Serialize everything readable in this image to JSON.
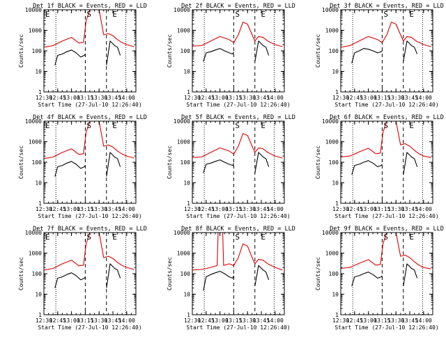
{
  "figure": {
    "x_title": "Start Time (27-Jul-10 12:26:40)",
    "y_title": "Counts/sec",
    "x_ticks": [
      "12:30",
      "12:45",
      "13:00",
      "13:15",
      "13:30",
      "13:45",
      "14:00"
    ],
    "y_ticks": [
      "1",
      "10",
      "100",
      "1000",
      "10000"
    ],
    "marker_labels": [
      "E",
      "S",
      "E"
    ],
    "colors": {
      "events": "#000000",
      "lld": "#e00000",
      "axis": "#000000"
    }
  },
  "chart_data": [
    {
      "type": "line",
      "title": "Det 1f BLACK = Events, RED = LLD",
      "xlabel": "Start Time (27-Jul-10 12:26:40)",
      "ylabel": "Counts/sec",
      "y_scale": "log",
      "ylim": [
        1,
        10000
      ],
      "x_range": [
        "12:30",
        "14:10"
      ],
      "grid": false,
      "dotted_lines": [
        "12:43",
        "13:59"
      ],
      "dashed_lines": [
        "13:15",
        "13:38"
      ],
      "markers": [
        {
          "label": "E",
          "x": "12:30"
        },
        {
          "label": "S",
          "x": "13:15"
        },
        {
          "label": "E",
          "x": "13:43"
        }
      ],
      "series": [
        {
          "name": "LLD",
          "color": "red",
          "x": [
            "12:30",
            "12:40",
            "12:50",
            "13:00",
            "13:08",
            "13:13",
            "13:16",
            "13:20",
            "13:25",
            "13:30",
            "13:35",
            "13:40",
            "13:45",
            "13:50",
            "13:55",
            "14:00",
            "14:08"
          ],
          "values": [
            150,
            180,
            300,
            450,
            240,
            260,
            3000,
            10000,
            10000,
            10000,
            600,
            700,
            550,
            350,
            250,
            200,
            160
          ]
        },
        {
          "name": "Events",
          "color": "black",
          "x": [
            "12:42",
            "12:45",
            "12:50",
            "12:55",
            "13:00",
            "13:05",
            "13:10",
            "13:14",
            "13:15",
            "13:37",
            "13:38",
            "13:42",
            "13:47",
            "13:50",
            "13:53"
          ],
          "values": [
            20,
            60,
            70,
            90,
            110,
            80,
            50,
            60,
            70,
            null,
            20,
            300,
            180,
            150,
            60
          ]
        }
      ]
    },
    {
      "type": "line",
      "title": "Det 2f BLACK = Events, RED = LLD",
      "xlabel": "Start Time (27-Jul-10 12:26:40)",
      "ylabel": "Counts/sec",
      "y_scale": "log",
      "ylim": [
        1,
        10000
      ],
      "x_range": [
        "12:30",
        "14:10"
      ],
      "grid": false,
      "dotted_lines": [
        "12:43",
        "13:59"
      ],
      "dashed_lines": [
        "13:15",
        "13:38"
      ],
      "markers": [
        {
          "label": "S",
          "x": "13:15"
        },
        {
          "label": "E",
          "x": "13:43"
        }
      ],
      "series": [
        {
          "name": "LLD",
          "color": "red",
          "x": [
            "12:30",
            "12:40",
            "12:50",
            "13:00",
            "13:10",
            "13:15",
            "13:20",
            "13:25",
            "13:30",
            "13:35",
            "13:38",
            "13:42",
            "13:47",
            "13:52",
            "14:00",
            "14:08"
          ],
          "values": [
            170,
            180,
            300,
            500,
            350,
            250,
            600,
            2500,
            2000,
            600,
            300,
            500,
            450,
            300,
            200,
            160
          ]
        },
        {
          "name": "Events",
          "color": "black",
          "x": [
            "12:42",
            "12:45",
            "12:50",
            "12:55",
            "13:00",
            "13:05",
            "13:10",
            "13:14",
            "13:15",
            "13:37",
            "13:38",
            "13:42",
            "13:47",
            "13:50",
            "13:53"
          ],
          "values": [
            30,
            80,
            90,
            110,
            130,
            100,
            80,
            70,
            90,
            null,
            30,
            300,
            180,
            150,
            60
          ]
        }
      ]
    },
    {
      "type": "line",
      "title": "Det 3f BLACK = Events, RED = LLD",
      "xlabel": "Start Time (27-Jul-10 12:26:40)",
      "ylabel": "Counts/sec",
      "y_scale": "log",
      "ylim": [
        1,
        10000
      ],
      "x_range": [
        "12:30",
        "14:10"
      ],
      "grid": false,
      "dotted_lines": [
        "12:43",
        "13:59"
      ],
      "dashed_lines": [
        "13:15",
        "13:38"
      ],
      "markers": [
        {
          "label": "S",
          "x": "13:15"
        },
        {
          "label": "E",
          "x": "13:43"
        }
      ],
      "series": [
        {
          "name": "LLD",
          "color": "red",
          "x": [
            "12:30",
            "12:40",
            "12:50",
            "13:00",
            "13:10",
            "13:15",
            "13:20",
            "13:25",
            "13:30",
            "13:35",
            "13:38",
            "13:42",
            "13:47",
            "13:52",
            "14:00",
            "14:08"
          ],
          "values": [
            150,
            180,
            300,
            500,
            350,
            250,
            600,
            2500,
            2000,
            600,
            300,
            500,
            450,
            300,
            200,
            160
          ]
        },
        {
          "name": "Events",
          "color": "black",
          "x": [
            "12:42",
            "12:45",
            "12:50",
            "12:55",
            "13:00",
            "13:05",
            "13:10",
            "13:14",
            "13:15",
            "13:37",
            "13:38",
            "13:42",
            "13:47",
            "13:50",
            "13:53"
          ],
          "values": [
            25,
            80,
            100,
            130,
            120,
            100,
            80,
            90,
            100,
            null,
            30,
            300,
            180,
            150,
            70
          ]
        }
      ]
    },
    {
      "type": "line",
      "title": "Det 4f BLACK = Events, RED = LLD",
      "xlabel": "Start Time (27-Jul-10 12:26:40)",
      "ylabel": "Counts/sec",
      "y_scale": "log",
      "ylim": [
        1,
        10000
      ],
      "x_range": [
        "12:30",
        "14:10"
      ],
      "grid": false,
      "dotted_lines": [
        "12:43",
        "13:59"
      ],
      "dashed_lines": [
        "13:15",
        "13:38"
      ],
      "markers": [
        {
          "label": "E",
          "x": "12:30"
        },
        {
          "label": "S",
          "x": "13:15"
        },
        {
          "label": "E",
          "x": "13:43"
        }
      ],
      "series": [
        {
          "name": "LLD",
          "color": "red",
          "x": [
            "12:30",
            "12:40",
            "12:50",
            "13:00",
            "13:08",
            "13:13",
            "13:16",
            "13:20",
            "13:25",
            "13:30",
            "13:35",
            "13:40",
            "13:45",
            "13:50",
            "13:55",
            "14:00",
            "14:08"
          ],
          "values": [
            150,
            180,
            300,
            450,
            240,
            260,
            3000,
            10000,
            10000,
            10000,
            600,
            700,
            550,
            350,
            250,
            200,
            160
          ]
        },
        {
          "name": "Events",
          "color": "black",
          "x": [
            "12:42",
            "12:45",
            "12:50",
            "12:55",
            "13:00",
            "13:05",
            "13:10",
            "13:14",
            "13:15",
            "13:37",
            "13:38",
            "13:42",
            "13:47",
            "13:50",
            "13:53"
          ],
          "values": [
            20,
            60,
            70,
            90,
            110,
            80,
            50,
            60,
            70,
            null,
            20,
            300,
            180,
            150,
            60
          ]
        }
      ]
    },
    {
      "type": "line",
      "title": "Det 5f BLACK = Events, RED = LLD",
      "xlabel": "Start Time (27-Jul-10 12:26:40)",
      "ylabel": "Counts/sec",
      "y_scale": "log",
      "ylim": [
        1,
        10000
      ],
      "x_range": [
        "12:30",
        "14:10"
      ],
      "grid": false,
      "dotted_lines": [
        "12:43",
        "13:59"
      ],
      "dashed_lines": [
        "13:15",
        "13:38"
      ],
      "markers": [
        {
          "label": "S",
          "x": "13:15"
        },
        {
          "label": "E",
          "x": "13:43"
        }
      ],
      "series": [
        {
          "name": "LLD",
          "color": "red",
          "x": [
            "12:30",
            "12:40",
            "12:50",
            "13:00",
            "13:10",
            "13:15",
            "13:20",
            "13:25",
            "13:30",
            "13:35",
            "13:38",
            "13:42",
            "13:47",
            "13:52",
            "14:00",
            "14:08"
          ],
          "values": [
            170,
            180,
            300,
            500,
            350,
            250,
            600,
            2500,
            2000,
            600,
            300,
            500,
            450,
            300,
            200,
            160
          ]
        },
        {
          "name": "Events",
          "color": "black",
          "x": [
            "12:42",
            "12:45",
            "12:50",
            "12:55",
            "13:00",
            "13:05",
            "13:10",
            "13:14",
            "13:15",
            "13:37",
            "13:38",
            "13:42",
            "13:47",
            "13:50",
            "13:53"
          ],
          "values": [
            30,
            80,
            90,
            110,
            130,
            100,
            80,
            70,
            90,
            null,
            30,
            300,
            180,
            150,
            60
          ]
        }
      ]
    },
    {
      "type": "line",
      "title": "Det 6f BLACK = Events, RED = LLD",
      "xlabel": "Start Time (27-Jul-10 12:26:40)",
      "ylabel": "Counts/sec",
      "y_scale": "log",
      "ylim": [
        1,
        10000
      ],
      "x_range": [
        "12:30",
        "14:10"
      ],
      "grid": false,
      "dotted_lines": [
        "12:43",
        "13:59"
      ],
      "dashed_lines": [
        "13:15",
        "13:38"
      ],
      "markers": [
        {
          "label": "S",
          "x": "13:15"
        },
        {
          "label": "E",
          "x": "13:43"
        }
      ],
      "series": [
        {
          "name": "LLD",
          "color": "red",
          "x": [
            "12:30",
            "12:40",
            "12:50",
            "13:00",
            "13:08",
            "13:13",
            "13:16",
            "13:20",
            "13:25",
            "13:30",
            "13:35",
            "13:40",
            "13:45",
            "13:50",
            "13:55",
            "14:00",
            "14:08"
          ],
          "values": [
            180,
            200,
            320,
            480,
            260,
            280,
            3000,
            10000,
            10000,
            10000,
            700,
            800,
            600,
            380,
            260,
            200,
            170
          ]
        },
        {
          "name": "Events",
          "color": "black",
          "x": [
            "12:42",
            "12:45",
            "12:50",
            "12:55",
            "13:00",
            "13:05",
            "13:10",
            "13:14",
            "13:15",
            "13:37",
            "13:38",
            "13:42",
            "13:47",
            "13:50",
            "13:53"
          ],
          "values": [
            25,
            70,
            80,
            100,
            120,
            90,
            60,
            70,
            80,
            null,
            25,
            300,
            180,
            150,
            60
          ]
        }
      ]
    },
    {
      "type": "line",
      "title": "Det 7f BLACK = Events, RED = LLD",
      "xlabel": "Start Time (27-Jul-10 12:26:40)",
      "ylabel": "Counts/sec",
      "y_scale": "log",
      "ylim": [
        1,
        10000
      ],
      "x_range": [
        "12:30",
        "14:10"
      ],
      "grid": false,
      "dotted_lines": [
        "12:43",
        "13:59"
      ],
      "dashed_lines": [
        "13:15",
        "13:38"
      ],
      "markers": [
        {
          "label": "E",
          "x": "12:30"
        },
        {
          "label": "S",
          "x": "13:15"
        },
        {
          "label": "E",
          "x": "13:43"
        }
      ],
      "series": [
        {
          "name": "LLD",
          "color": "red",
          "x": [
            "12:30",
            "12:40",
            "12:50",
            "13:00",
            "13:08",
            "13:13",
            "13:16",
            "13:20",
            "13:25",
            "13:30",
            "13:35",
            "13:40",
            "13:45",
            "13:50",
            "13:55",
            "14:00",
            "14:08"
          ],
          "values": [
            150,
            180,
            300,
            450,
            240,
            260,
            3000,
            10000,
            10000,
            10000,
            600,
            700,
            550,
            350,
            250,
            200,
            160
          ]
        },
        {
          "name": "Events",
          "color": "black",
          "x": [
            "12:42",
            "12:45",
            "12:50",
            "12:55",
            "13:00",
            "13:05",
            "13:10",
            "13:14",
            "13:15",
            "13:37",
            "13:38",
            "13:42",
            "13:47",
            "13:50",
            "13:53"
          ],
          "values": [
            20,
            60,
            70,
            90,
            110,
            80,
            50,
            60,
            70,
            null,
            20,
            300,
            180,
            150,
            60
          ]
        }
      ]
    },
    {
      "type": "line",
      "title": "Det 8f BLACK = Events, RED = LLD",
      "xlabel": "Start Time (27-Jul-10 12:26:40)",
      "ylabel": "Counts/sec",
      "y_scale": "log",
      "ylim": [
        1,
        10000
      ],
      "x_range": [
        "12:30",
        "14:10"
      ],
      "grid": false,
      "dotted_lines": [
        "12:43",
        "13:59"
      ],
      "dashed_lines": [
        "13:15",
        "13:38"
      ],
      "markers": [
        {
          "label": "S",
          "x": "13:15"
        },
        {
          "label": "E",
          "x": "13:43"
        }
      ],
      "series": [
        {
          "name": "LLD",
          "color": "red",
          "x": [
            "12:30",
            "12:40",
            "12:50",
            "12:57",
            "12:58",
            "13:03",
            "13:04",
            "13:10",
            "13:15",
            "13:20",
            "13:25",
            "13:30",
            "13:35",
            "13:38",
            "13:42",
            "13:47",
            "13:52",
            "14:00",
            "14:08"
          ],
          "values": [
            150,
            160,
            200,
            250,
            10000,
            10000,
            250,
            300,
            250,
            600,
            2800,
            2200,
            600,
            300,
            500,
            450,
            300,
            200,
            150
          ]
        },
        {
          "name": "Events",
          "color": "black",
          "x": [
            "12:42",
            "12:45",
            "12:50",
            "12:55",
            "13:00",
            "13:05",
            "13:10",
            "13:14",
            "13:15",
            "13:37",
            "13:38",
            "13:42",
            "13:47",
            "13:50",
            "13:53"
          ],
          "values": [
            15,
            70,
            90,
            110,
            130,
            100,
            70,
            60,
            80,
            null,
            25,
            250,
            150,
            120,
            50
          ]
        }
      ]
    },
    {
      "type": "line",
      "title": "Det 9f BLACK = Events, RED = LLD",
      "xlabel": "Start Time (27-Jul-10 12:26:40)",
      "ylabel": "Counts/sec",
      "y_scale": "log",
      "ylim": [
        1,
        10000
      ],
      "x_range": [
        "12:30",
        "14:10"
      ],
      "grid": false,
      "dotted_lines": [
        "12:43",
        "13:59"
      ],
      "dashed_lines": [
        "13:15",
        "13:38"
      ],
      "markers": [
        {
          "label": "S",
          "x": "13:15"
        },
        {
          "label": "E",
          "x": "13:43"
        }
      ],
      "series": [
        {
          "name": "LLD",
          "color": "red",
          "x": [
            "12:30",
            "12:40",
            "12:50",
            "13:00",
            "13:08",
            "13:13",
            "13:16",
            "13:20",
            "13:25",
            "13:30",
            "13:35",
            "13:40",
            "13:45",
            "13:50",
            "13:55",
            "14:00",
            "14:08"
          ],
          "values": [
            180,
            200,
            320,
            480,
            260,
            280,
            3000,
            10000,
            10000,
            10000,
            700,
            800,
            600,
            380,
            260,
            200,
            170
          ]
        },
        {
          "name": "Events",
          "color": "black",
          "x": [
            "12:42",
            "12:45",
            "12:50",
            "12:55",
            "13:00",
            "13:05",
            "13:10",
            "13:14",
            "13:15",
            "13:37",
            "13:38",
            "13:42",
            "13:47",
            "13:50",
            "13:53"
          ],
          "values": [
            25,
            70,
            80,
            100,
            120,
            90,
            60,
            70,
            80,
            null,
            25,
            300,
            180,
            150,
            60
          ]
        }
      ]
    }
  ]
}
